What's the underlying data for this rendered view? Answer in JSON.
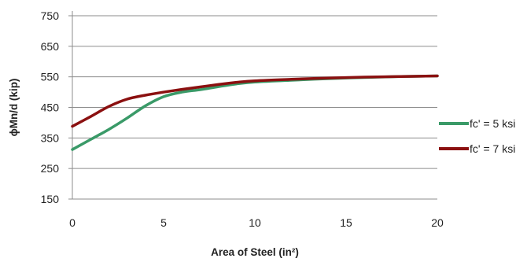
{
  "chart_data": {
    "type": "line",
    "xlabel": "Area of Steel (in²)",
    "ylabel": "ϕMn/d  (kip)",
    "xlim": [
      0,
      20
    ],
    "ylim": [
      150,
      750
    ],
    "x_ticks": [
      0,
      5,
      10,
      15,
      20
    ],
    "y_ticks": [
      150,
      250,
      350,
      450,
      550,
      650,
      750
    ],
    "grid": "horizontal",
    "legend_position": "right",
    "series": [
      {
        "name": "fc' = 5 ksi",
        "color": "#3a9a68",
        "x": [
          0,
          1,
          2,
          3,
          4,
          5,
          6,
          7,
          8,
          9,
          10,
          12,
          14,
          16,
          18,
          20
        ],
        "y": [
          312,
          345,
          378,
          415,
          455,
          485,
          500,
          508,
          518,
          527,
          533,
          539,
          544,
          548,
          551,
          553
        ]
      },
      {
        "name": "fc' = 7 ksi",
        "color": "#8b1010",
        "x": [
          0,
          1,
          2,
          3,
          4,
          5,
          6,
          7,
          8,
          9,
          10,
          12,
          14,
          16,
          18,
          20
        ],
        "y": [
          388,
          420,
          453,
          477,
          490,
          500,
          509,
          517,
          525,
          532,
          537,
          542,
          546,
          549,
          551,
          553
        ]
      }
    ]
  }
}
